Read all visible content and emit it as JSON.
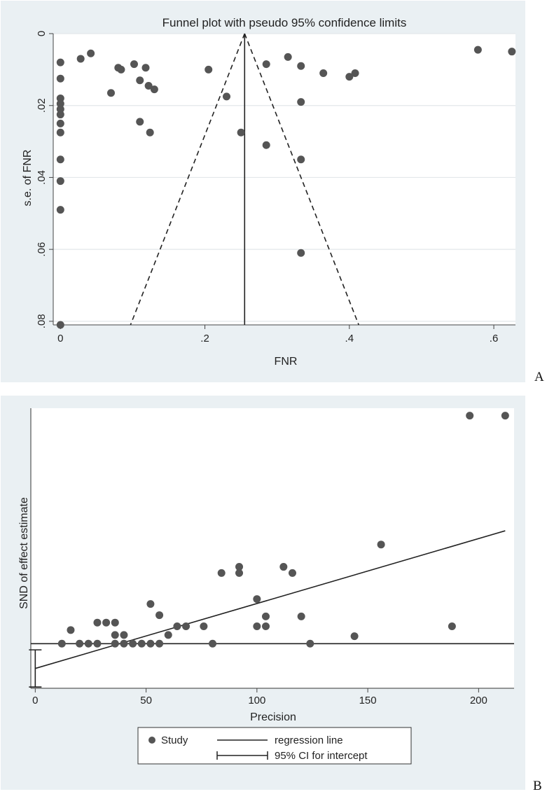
{
  "chart_data": [
    {
      "panel": "A",
      "type": "scatter",
      "title": "Funnel plot with pseudo 95% confidence limits",
      "xlabel": "FNR",
      "ylabel": "s.e. of FNR",
      "xlim": [
        -0.01,
        0.63
      ],
      "ylim": [
        0.081,
        0
      ],
      "y_inverted": true,
      "grid": "horizontal",
      "x_ticks": [
        0,
        0.2,
        0.4,
        0.6
      ],
      "x_tick_labels": [
        "0",
        ".2",
        ".4",
        ".6"
      ],
      "y_ticks": [
        0,
        0.02,
        0.04,
        0.06,
        0.08
      ],
      "y_tick_labels": [
        "0",
        ".02",
        ".04",
        ".06",
        ".08"
      ],
      "pooled_estimate": 0.255,
      "ci_lines": {
        "apex": [
          0.255,
          0
        ],
        "bottom_left": [
          0.097,
          0.081
        ],
        "bottom_right": [
          0.413,
          0.081
        ]
      },
      "points": [
        [
          0,
          0.008
        ],
        [
          0,
          0.0125
        ],
        [
          0,
          0.018
        ],
        [
          0,
          0.0195
        ],
        [
          0,
          0.021
        ],
        [
          0,
          0.0225
        ],
        [
          0,
          0.025
        ],
        [
          0,
          0.0275
        ],
        [
          0,
          0.035
        ],
        [
          0,
          0.041
        ],
        [
          0,
          0.049
        ],
        [
          0,
          0.081
        ],
        [
          0.028,
          0.007
        ],
        [
          0.042,
          0.0055
        ],
        [
          0.07,
          0.0165
        ],
        [
          0.08,
          0.0095
        ],
        [
          0.084,
          0.01
        ],
        [
          0.102,
          0.0085
        ],
        [
          0.11,
          0.013
        ],
        [
          0.11,
          0.0245
        ],
        [
          0.118,
          0.0095
        ],
        [
          0.122,
          0.0145
        ],
        [
          0.124,
          0.0275
        ],
        [
          0.13,
          0.0155
        ],
        [
          0.205,
          0.01
        ],
        [
          0.23,
          0.0175
        ],
        [
          0.25,
          0.0275
        ],
        [
          0.285,
          0.0085
        ],
        [
          0.285,
          0.031
        ],
        [
          0.315,
          0.0065
        ],
        [
          0.333,
          0.009
        ],
        [
          0.333,
          0.019
        ],
        [
          0.333,
          0.035
        ],
        [
          0.333,
          0.061
        ],
        [
          0.364,
          0.011
        ],
        [
          0.4,
          0.012
        ],
        [
          0.408,
          0.011
        ],
        [
          0.578,
          0.0045
        ],
        [
          0.625,
          0.005
        ]
      ]
    },
    {
      "panel": "B",
      "type": "scatter",
      "title": "",
      "xlabel": "Precision",
      "ylabel": "SND of effect estimate",
      "xlim": [
        -2,
        216
      ],
      "ylim": [
        -1.8,
        9.5
      ],
      "x_ticks": [
        0,
        50,
        100,
        150,
        200
      ],
      "x_tick_labels": [
        "0",
        "50",
        "100",
        "150",
        "200"
      ],
      "zero_line": 0,
      "regression_line": {
        "intercept": -1.0,
        "slope": 0.0262,
        "x_range": [
          0,
          212
        ]
      },
      "intercept_ci": [
        -1.75,
        -0.25
      ],
      "legend": {
        "position": "bottom",
        "entries": [
          "Study",
          "regression line",
          "95% CI for intercept"
        ]
      },
      "points": [
        [
          12,
          0
        ],
        [
          16,
          0.55
        ],
        [
          20,
          0
        ],
        [
          24,
          0
        ],
        [
          28,
          0
        ],
        [
          28,
          0.85
        ],
        [
          32,
          0.85
        ],
        [
          36,
          0.85
        ],
        [
          36,
          0.35
        ],
        [
          36,
          0
        ],
        [
          40,
          0
        ],
        [
          40,
          0.35
        ],
        [
          44,
          0
        ],
        [
          48,
          0
        ],
        [
          52,
          0
        ],
        [
          52,
          1.6
        ],
        [
          56,
          0
        ],
        [
          56,
          1.15
        ],
        [
          60,
          0.35
        ],
        [
          64,
          0.7
        ],
        [
          68,
          0.7
        ],
        [
          76,
          0.7
        ],
        [
          80,
          0
        ],
        [
          84,
          2.85
        ],
        [
          92,
          2.85
        ],
        [
          92,
          3.1
        ],
        [
          100,
          1.8
        ],
        [
          100,
          0.7
        ],
        [
          104,
          0.7
        ],
        [
          104,
          1.1
        ],
        [
          112,
          3.1
        ],
        [
          116,
          2.85
        ],
        [
          120,
          1.1
        ],
        [
          124,
          0
        ],
        [
          144,
          0.3
        ],
        [
          156,
          4.0
        ],
        [
          188,
          0.7
        ],
        [
          196,
          9.2
        ],
        [
          212,
          9.2
        ]
      ]
    }
  ],
  "panel_labels": [
    "A",
    "B"
  ]
}
